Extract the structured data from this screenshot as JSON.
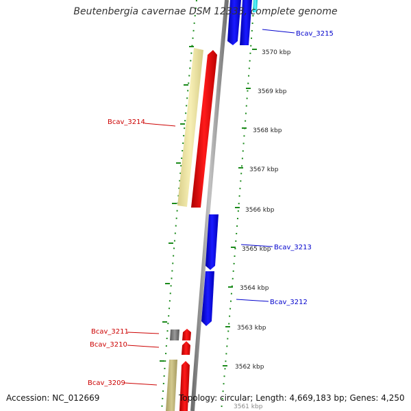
{
  "title": "Beutenbergia cavernae DSM 12333, complete genome",
  "accession": "Accession: NC_012669",
  "topology": "Topology: circular; Length: 4,669,183 bp; Genes: 4,250",
  "ticks": [
    "3570 kbp",
    "3569 kbp",
    "3568 kbp",
    "3567 kbp",
    "3566 kbp",
    "3565 kbp",
    "3564 kbp",
    "3563 kbp",
    "3562 kbp",
    "3561 kbp"
  ],
  "genes": [
    {
      "label": "Bcav_3215",
      "strand": "reverse",
      "color": "#0000ee"
    },
    {
      "label": "Bcav_3214",
      "strand": "forward",
      "color": "#ee0000"
    },
    {
      "label": "Bcav_3213",
      "strand": "reverse",
      "color": "#0000ee"
    },
    {
      "label": "Bcav_3212",
      "strand": "reverse",
      "color": "#0000ee"
    },
    {
      "label": "Bcav_3211",
      "strand": "forward",
      "color": "#666666"
    },
    {
      "label": "Bcav_3210",
      "strand": "forward",
      "color": "#ee0000"
    },
    {
      "label": "Bcav_3209",
      "strand": "forward",
      "color": "#ee0000"
    }
  ],
  "colors": {
    "forward_label": "#cc0000",
    "reverse_label": "#0000cc",
    "backbone": "#8a8a8a",
    "dotted_ring": "#1a8a1a",
    "forward_gene": "#ee0000",
    "reverse_gene": "#0000ee",
    "feature_pale": "#f3eaa6",
    "feature_khaki": "#c8bd82",
    "feature_cyan": "#00e5ee"
  }
}
